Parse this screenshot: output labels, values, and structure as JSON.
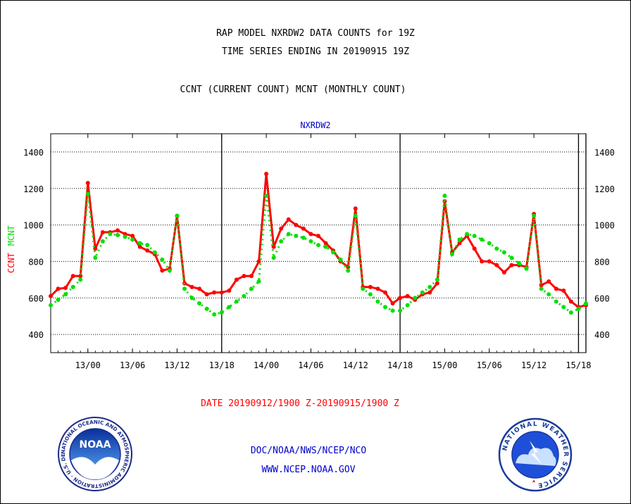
{
  "header": {
    "title_line1": "RAP MODEL NXRDW2 DATA COUNTS for 19Z",
    "title_line2": "TIME SERIES ENDING IN 20190915 19Z",
    "title_line3": "CCNT (CURRENT COUNT) MCNT (MONTHLY COUNT)"
  },
  "footer": {
    "date_range": "DATE 20190912/1900 Z-20190915/1900 Z",
    "credit_line1": "DOC/NOAA/NWS/NCEP/NCO",
    "credit_line2": "WWW.NCEP.NOAA.GOV"
  },
  "logos": {
    "noaa_icon": "noaa-seal",
    "noaa_text": "NOAA",
    "noaa_ring_text": "NATIONAL OCEANIC AND ATMOSPHERIC ADMINISTRATION · U.S. DEPARTMENT OF COMMERCE",
    "nws_icon": "national-weather-service-seal",
    "nws_ring_text": "NATIONAL WEATHER SERVICE"
  },
  "colors": {
    "ccnt": "#ff0000",
    "mcnt": "#00e000",
    "subtitle": "#0000cc",
    "grid": "#000000"
  },
  "chart_data": {
    "type": "line",
    "title": "NXRDW2",
    "ylabel_left": [
      "CCNT",
      "MCNT"
    ],
    "ylim": [
      300,
      1500
    ],
    "yticks": [
      400,
      600,
      800,
      1000,
      1200,
      1400
    ],
    "xlim_hours": [
      -5,
      67
    ],
    "x_tick_labels": [
      "13/00",
      "13/06",
      "13/12",
      "13/18",
      "14/00",
      "14/06",
      "14/12",
      "14/18",
      "15/00",
      "15/06",
      "15/12",
      "15/18"
    ],
    "day_separators": [
      "13/18",
      "14/18",
      "15/18"
    ],
    "grid": true,
    "x": [
      "12/19",
      "12/20",
      "12/21",
      "12/22",
      "12/23",
      "13/00",
      "13/01",
      "13/02",
      "13/03",
      "13/04",
      "13/05",
      "13/06",
      "13/07",
      "13/08",
      "13/09",
      "13/10",
      "13/11",
      "13/12",
      "13/13",
      "13/14",
      "13/15",
      "13/16",
      "13/17",
      "13/18",
      "13/19",
      "13/20",
      "13/21",
      "13/22",
      "13/23",
      "14/00",
      "14/01",
      "14/02",
      "14/03",
      "14/04",
      "14/05",
      "14/06",
      "14/07",
      "14/08",
      "14/09",
      "14/10",
      "14/11",
      "14/12",
      "14/13",
      "14/14",
      "14/15",
      "14/16",
      "14/17",
      "14/18",
      "14/19",
      "14/20",
      "14/21",
      "14/22",
      "14/23",
      "15/00",
      "15/01",
      "15/02",
      "15/03",
      "15/04",
      "15/05",
      "15/06",
      "15/07",
      "15/08",
      "15/09",
      "15/10",
      "15/11",
      "15/12",
      "15/13",
      "15/14",
      "15/15",
      "15/16",
      "15/17",
      "15/18",
      "15/19"
    ],
    "series": [
      {
        "name": "CCNT",
        "color": "#ff0000",
        "values": [
          610,
          650,
          655,
          720,
          720,
          1230,
          870,
          960,
          960,
          970,
          950,
          940,
          880,
          860,
          840,
          750,
          760,
          1050,
          680,
          660,
          650,
          620,
          630,
          630,
          640,
          700,
          720,
          720,
          800,
          1280,
          880,
          980,
          1030,
          1000,
          980,
          950,
          940,
          900,
          860,
          800,
          770,
          1090,
          660,
          660,
          650,
          630,
          570,
          600,
          610,
          590,
          620,
          630,
          680,
          1130,
          850,
          900,
          940,
          870,
          800,
          800,
          780,
          740,
          780,
          780,
          770,
          1060,
          670,
          690,
          650,
          640,
          580,
          550,
          560
        ]
      },
      {
        "name": "MCNT",
        "color": "#00e000",
        "values": [
          560,
          590,
          620,
          660,
          700,
          1170,
          820,
          910,
          950,
          945,
          935,
          920,
          900,
          890,
          850,
          810,
          750,
          1050,
          650,
          600,
          570,
          540,
          510,
          520,
          550,
          580,
          610,
          650,
          690,
          1160,
          820,
          910,
          950,
          940,
          930,
          910,
          890,
          880,
          850,
          810,
          750,
          1050,
          650,
          620,
          580,
          550,
          530,
          530,
          560,
          600,
          630,
          660,
          700,
          1160,
          840,
          920,
          950,
          940,
          920,
          900,
          870,
          850,
          820,
          790,
          760,
          1050,
          650,
          620,
          580,
          550,
          520,
          540,
          570
        ]
      }
    ]
  }
}
